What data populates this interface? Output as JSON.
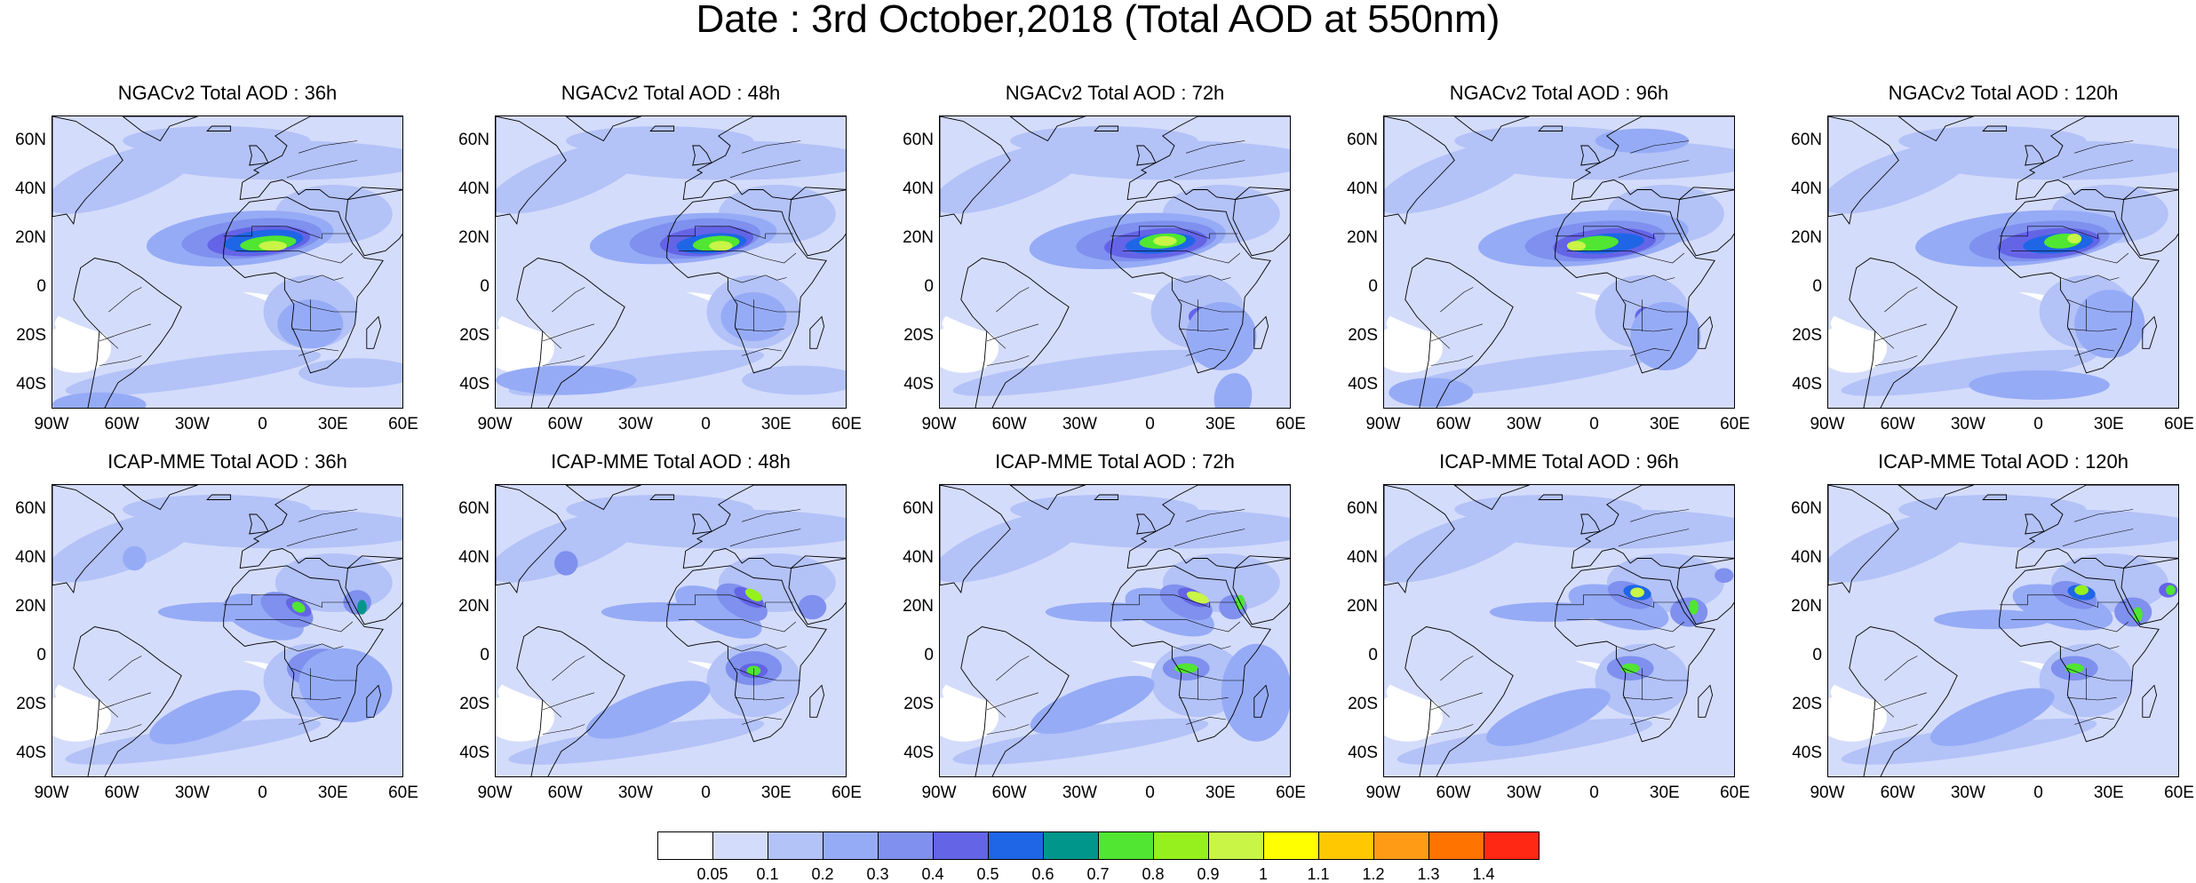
{
  "title": "Date : 3rd October,2018 (Total AOD at 550nm)",
  "rows": [
    {
      "model": "NGACv2",
      "panels": [
        {
          "title": "NGACv2 Total AOD : 36h"
        },
        {
          "title": "NGACv2 Total AOD : 48h"
        },
        {
          "title": "NGACv2 Total AOD : 72h"
        },
        {
          "title": "NGACv2 Total AOD : 96h"
        },
        {
          "title": "NGACv2 Total AOD : 120h"
        }
      ]
    },
    {
      "model": "ICAP-MME",
      "panels": [
        {
          "title": "ICAP-MME Total AOD : 36h"
        },
        {
          "title": "ICAP-MME Total AOD : 48h"
        },
        {
          "title": "ICAP-MME Total AOD : 72h"
        },
        {
          "title": "ICAP-MME Total AOD : 96h"
        },
        {
          "title": "ICAP-MME Total AOD : 120h"
        }
      ]
    }
  ],
  "lat_ticks": [
    "60N",
    "40N",
    "20N",
    "0",
    "20S",
    "40S"
  ],
  "lon_ticks": [
    "90W",
    "60W",
    "30W",
    "0",
    "30E",
    "60E"
  ],
  "map_extent": {
    "lon_min": -90,
    "lon_max": 60,
    "lat_min": -50,
    "lat_max": 70
  },
  "colorbar": {
    "labels": [
      "0.05",
      "0.1",
      "0.2",
      "0.3",
      "0.4",
      "0.5",
      "0.6",
      "0.7",
      "0.8",
      "0.9",
      "1",
      "1.1",
      "1.2",
      "1.3",
      "1.4"
    ],
    "colors": [
      "#ffffff",
      "#d4dcfb",
      "#b3c2f7",
      "#96abf6",
      "#7f90ee",
      "#6464e6",
      "#1e66e6",
      "#00968c",
      "#50e632",
      "#96f01e",
      "#c8f546",
      "#ffff00",
      "#ffc800",
      "#ff9b14",
      "#ff7300",
      "#ff2814"
    ]
  }
}
